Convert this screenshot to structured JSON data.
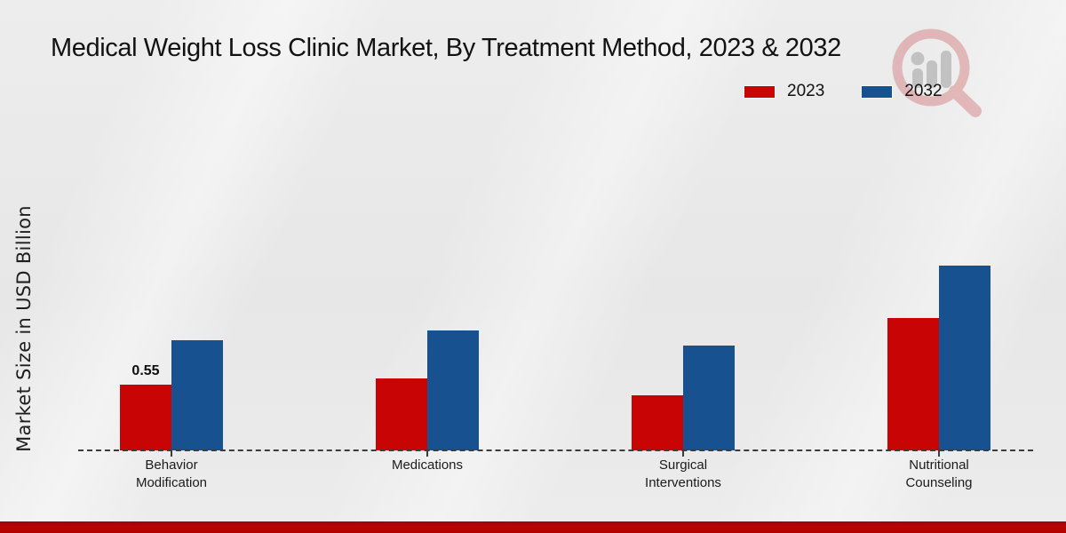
{
  "title": "Medical Weight Loss Clinic Market, By Treatment Method, 2023 & 2032",
  "ylabel": "Market Size in USD Billion",
  "colors": {
    "background": "#e9e9e9",
    "series_2023": "#c90404",
    "series_2032": "#17518f",
    "axis": "#3c3c3c",
    "footer_strip": "#b90303",
    "text": "#121212"
  },
  "watermark": "magnifier-people-logo",
  "chart_data": {
    "type": "bar",
    "title": "Medical Weight Loss Clinic Market, By Treatment Method, 2023 & 2032",
    "xlabel": "",
    "ylabel": "Market Size in USD Billion",
    "categories": [
      "Behavior\nModification",
      "Medications",
      "Surgical\nInterventions",
      "Nutritional\nCounseling"
    ],
    "series": [
      {
        "name": "2023",
        "color": "#c90404",
        "values": [
          0.55,
          0.6,
          0.46,
          1.11
        ]
      },
      {
        "name": "2032",
        "color": "#17518f",
        "values": [
          0.92,
          1.0,
          0.88,
          1.55
        ]
      }
    ],
    "shown_value_labels": [
      {
        "series_index": 0,
        "category_index": 0,
        "text": "0.55"
      }
    ],
    "ylim": [
      0,
      1.7
    ],
    "grid": false,
    "y_axis_ticks_visible": false,
    "baseline_style": "dashed",
    "legend_position": "top-right"
  }
}
